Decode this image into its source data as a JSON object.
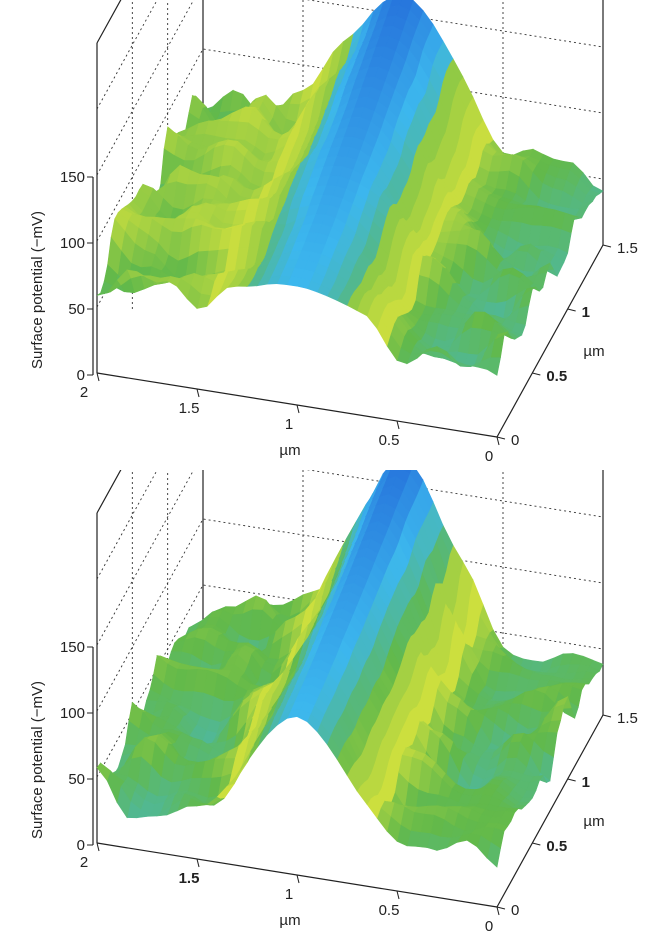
{
  "chart_data": [
    {
      "type": "surface3d",
      "zlabel": "Surface potential (−mV)",
      "xlabel": "µm",
      "ylabel": "µm",
      "xlim": [
        0,
        2
      ],
      "ylim": [
        0,
        1.5
      ],
      "zlim": [
        0,
        150
      ],
      "x_ticks": [
        "2",
        "1.5",
        "1",
        "0.5",
        "0"
      ],
      "y_ticks": [
        "0",
        "0.5",
        "1",
        "1.5"
      ],
      "z_ticks": [
        "150",
        "100",
        "50",
        "0"
      ],
      "colormap": [
        "#1f5ed6",
        "#3cb7ee",
        "#62b94a",
        "#f2ec3a",
        "#f6a728",
        "#ec5a1d"
      ],
      "surface": {
        "baseline_mV": 55,
        "ridge_center_x_um": 1.0,
        "ridge_width_um": 0.35,
        "ridge_peak_mV": 165,
        "ridge_dip_mV": 90,
        "left_region_mV": 70
      }
    },
    {
      "type": "surface3d",
      "zlabel": "Surface potential (−mV)",
      "xlabel": "µm",
      "ylabel": "µm",
      "xlim": [
        0,
        2
      ],
      "ylim": [
        0,
        1.5
      ],
      "zlim": [
        0,
        150
      ],
      "x_ticks": [
        "2",
        "1.5",
        "1",
        "0.5",
        "0"
      ],
      "y_ticks": [
        "0",
        "0.5",
        "1",
        "1.5"
      ],
      "z_ticks": [
        "150",
        "100",
        "50",
        "0"
      ],
      "colormap": [
        "#1f5ed6",
        "#3cb7ee",
        "#62b94a",
        "#f2ec3a",
        "#f6a728",
        "#ec5a1d"
      ],
      "surface": {
        "baseline_mV": 40,
        "ridge_center_x_um": 1.0,
        "ridge_width_um": 0.3,
        "ridge_peak_mV": 170,
        "ridge_dip_mV": 120,
        "left_region_mV": 40
      }
    }
  ]
}
